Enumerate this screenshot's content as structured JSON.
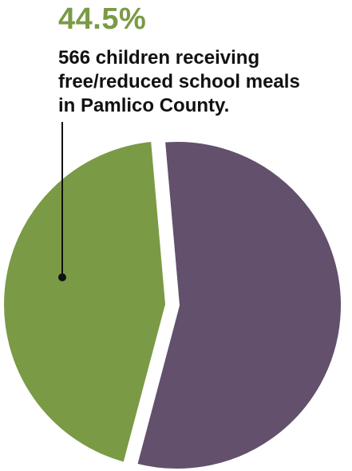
{
  "chart_data": {
    "type": "pie",
    "title": "",
    "slices": [
      {
        "label": "",
        "value": 44.5,
        "color": "#7a9a45"
      },
      {
        "label": "",
        "value": 55.5,
        "color": "#62506c"
      }
    ],
    "annotation": {
      "value_label": "44.5%",
      "lines": [
        "566 children receiving",
        "free/reduced school meals",
        "in Pamlico County."
      ]
    },
    "highlight_color": "#7a9a45",
    "leader_line_color": "#111111"
  }
}
